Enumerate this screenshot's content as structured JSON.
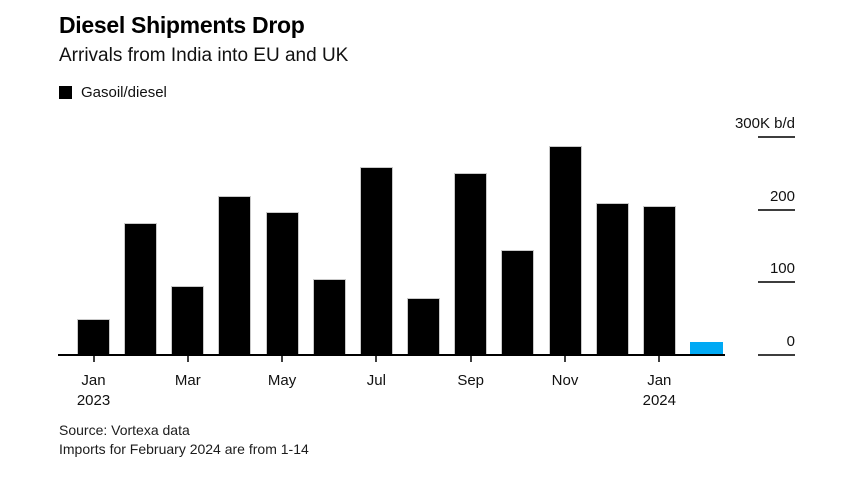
{
  "chart_data": {
    "type": "bar",
    "title": "Diesel Shipments Drop",
    "subtitle": "Arrivals from India into EU and UK",
    "legend": [
      {
        "label": "Gasoil/diesel",
        "color": "#000000"
      }
    ],
    "unit": "K b/d",
    "categories": [
      "Jan 2023",
      "Feb 2023",
      "Mar 2023",
      "Apr 2023",
      "May 2023",
      "Jun 2023",
      "Jul 2023",
      "Aug 2023",
      "Sep 2023",
      "Oct 2023",
      "Nov 2023",
      "Dec 2023",
      "Jan 2024",
      "Feb 2024"
    ],
    "values": [
      48,
      180,
      94,
      218,
      196,
      103,
      257,
      77,
      249,
      143,
      286,
      208,
      203,
      16
    ],
    "bar_color": "#000000",
    "highlight_index": 13,
    "highlight_color": "#00a9f4",
    "ylim": [
      0,
      300
    ],
    "y_ticks": [
      {
        "value": 0,
        "label": "0"
      },
      {
        "value": 100,
        "label": "100"
      },
      {
        "value": 200,
        "label": "200"
      },
      {
        "value": 300,
        "label": "300K b/d"
      }
    ],
    "x_ticks": [
      {
        "index": 0,
        "lines": [
          "Jan",
          "2023"
        ]
      },
      {
        "index": 2,
        "lines": [
          "Mar"
        ]
      },
      {
        "index": 4,
        "lines": [
          "May"
        ]
      },
      {
        "index": 6,
        "lines": [
          "Jul"
        ]
      },
      {
        "index": 8,
        "lines": [
          "Sep"
        ]
      },
      {
        "index": 10,
        "lines": [
          "Nov"
        ]
      },
      {
        "index": 12,
        "lines": [
          "Jan",
          "2024"
        ]
      }
    ],
    "grid": false,
    "legend_position": "top-left",
    "y_axis_side": "right"
  },
  "footer": {
    "source": "Source: Vortexa data",
    "note": "Imports for February 2024 are from 1-14"
  }
}
